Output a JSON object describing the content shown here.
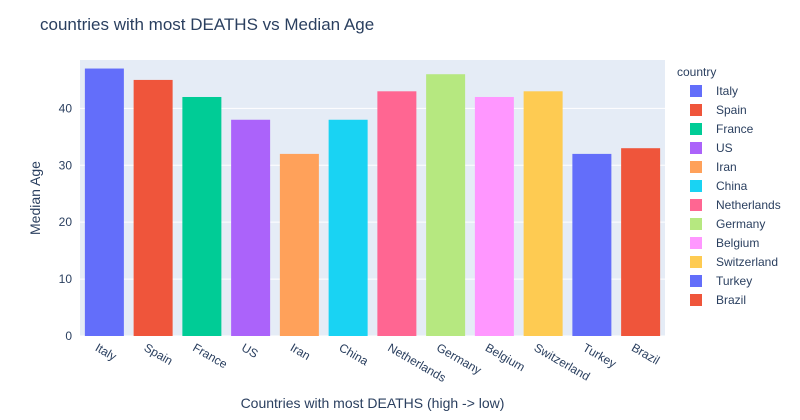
{
  "chart_data": {
    "type": "bar",
    "title": "countries with most DEATHS vs Median Age",
    "xlabel": "Countries with most DEATHS (high -> low)",
    "ylabel": "Median Age",
    "categories": [
      "Italy",
      "Spain",
      "France",
      "US",
      "Iran",
      "China",
      "Netherlands",
      "Germany",
      "Belgium",
      "Switzerland",
      "Turkey",
      "Brazil"
    ],
    "values": [
      47,
      45,
      42,
      38,
      32,
      38,
      43,
      46,
      42,
      43,
      32,
      33
    ],
    "colors": [
      "#636efa",
      "#ef553b",
      "#00cc96",
      "#ab63fa",
      "#ffa15a",
      "#19d3f3",
      "#ff6692",
      "#b6e880",
      "#ff97ff",
      "#fecb52",
      "#636efa",
      "#ef553b"
    ],
    "ylim": [
      0,
      48.5
    ],
    "yticks": [
      0,
      10,
      20,
      30,
      40
    ],
    "grid": true,
    "legend": {
      "title": "country",
      "placement": "right",
      "entries": [
        "Italy",
        "Spain",
        "France",
        "US",
        "Iran",
        "China",
        "Netherlands",
        "Germany",
        "Belgium",
        "Switzerland",
        "Turkey",
        "Brazil"
      ]
    },
    "plot_background": "#e5ecf6"
  }
}
